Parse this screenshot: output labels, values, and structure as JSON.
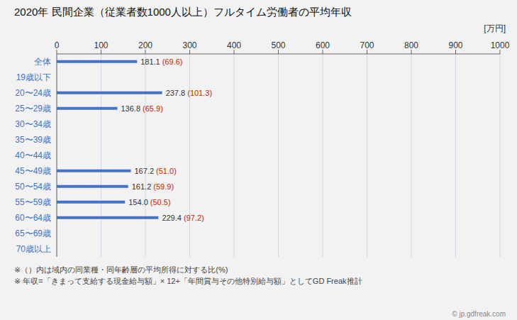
{
  "chart_data": {
    "type": "bar",
    "orientation": "horizontal",
    "title": "2020年 民間企業（従業者数1000人以上）フルタイム労働者の平均年収",
    "categories": [
      "全体",
      "19歳以下",
      "20〜24歳",
      "25〜29歳",
      "30〜34歳",
      "35〜39歳",
      "40〜44歳",
      "45〜49歳",
      "50〜54歳",
      "55〜59歳",
      "60〜64歳",
      "65〜69歳",
      "70歳以上"
    ],
    "values": [
      181.1,
      0,
      237.8,
      136.8,
      0,
      0,
      0,
      167.2,
      161.2,
      154.0,
      229.4,
      0,
      0
    ],
    "value_labels": [
      "181.1",
      null,
      "237.8",
      "136.8",
      null,
      null,
      null,
      "167.2",
      "161.2",
      "154.0",
      "229.4",
      null,
      null
    ],
    "ratio_labels": [
      "(69.6)",
      null,
      "(101.3)",
      "(65.9)",
      null,
      null,
      null,
      "(51.0)",
      "(59.9)",
      "(50.5)",
      "(97.2)",
      null,
      null
    ],
    "data_labels": true,
    "color": "#4472c4",
    "xlabel": "[万円]",
    "xlim": [
      0,
      1000
    ],
    "xticks": [
      0,
      100,
      200,
      300,
      400,
      500,
      600,
      700,
      800,
      900,
      1000
    ],
    "grid": true,
    "annotations": [
      "※（）内は域内の同業種・同年齢層の平均所得に対する比(%)",
      "※ 年収=「きまって支給する現金給与額」× 12+「年間賞与その他特別給与額」としてGD Freak推計",
      "© jp.gdfreak.com"
    ]
  }
}
